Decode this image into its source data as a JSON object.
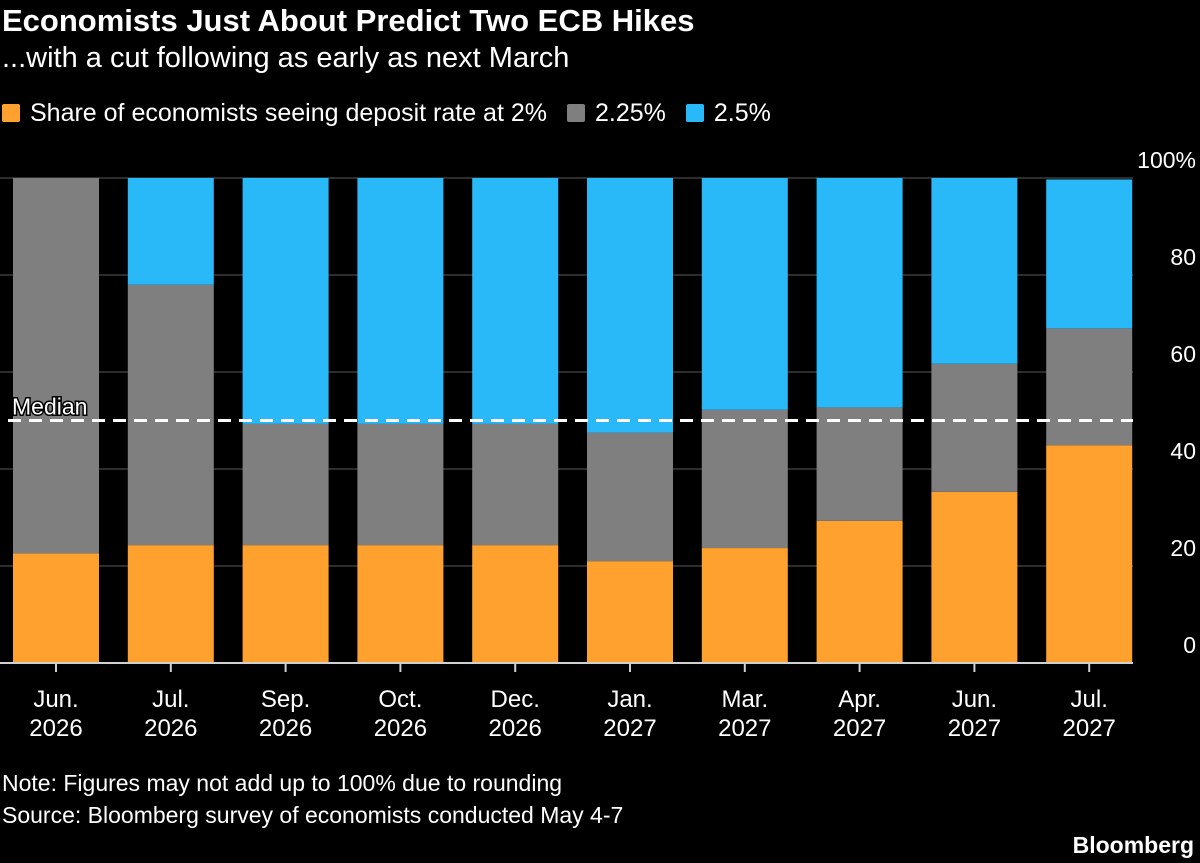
{
  "title": "Economists Just About Predict Two ECB Hikes",
  "subtitle": "...with a cut following as early as next March",
  "legend": {
    "items": [
      {
        "label": "Share of economists seeing deposit rate at 2%",
        "color": "#FFA12E"
      },
      {
        "label": "2.25%",
        "color": "#7F7F7F"
      },
      {
        "label": "2.5%",
        "color": "#29B9F8"
      }
    ]
  },
  "note": "Note: Figures may not add up to 100% due to rounding",
  "source": "Source: Bloomberg survey of economists conducted May 4-7",
  "brand": "Bloomberg",
  "chart_data": {
    "type": "bar",
    "stacked": true,
    "categories": [
      [
        "Jun.",
        "2026"
      ],
      [
        "Jul.",
        "2026"
      ],
      [
        "Sep.",
        "2026"
      ],
      [
        "Oct.",
        "2026"
      ],
      [
        "Dec.",
        "2026"
      ],
      [
        "Jan.",
        "2027"
      ],
      [
        "Mar.",
        "2027"
      ],
      [
        "Apr.",
        "2027"
      ],
      [
        "Jun.",
        "2027"
      ],
      [
        "Jul.",
        "2027"
      ]
    ],
    "series": [
      {
        "name": "Share of economists seeing deposit rate at 2%",
        "color": "#FFA12E",
        "values": [
          22.6,
          24.3,
          24.3,
          24.3,
          24.3,
          21,
          23.7,
          29.3,
          35.3,
          44.9
        ]
      },
      {
        "name": "2.25%",
        "color": "#7F7F7F",
        "values": [
          77.4,
          53.7,
          25,
          25,
          25,
          26.5,
          28.5,
          23.4,
          26.4,
          24.1
        ]
      },
      {
        "name": "2.5%",
        "color": "#29B9F8",
        "values": [
          0,
          22,
          50.7,
          50.7,
          50.7,
          52.5,
          47.8,
          47.3,
          38.3,
          30.7
        ]
      }
    ],
    "ylim": [
      0,
      100
    ],
    "yticks": [
      "0",
      "20",
      "40",
      "60",
      "80",
      "100%"
    ],
    "median": {
      "label": "Median",
      "value": 50
    },
    "grid": true,
    "legend_position": "top-left"
  }
}
